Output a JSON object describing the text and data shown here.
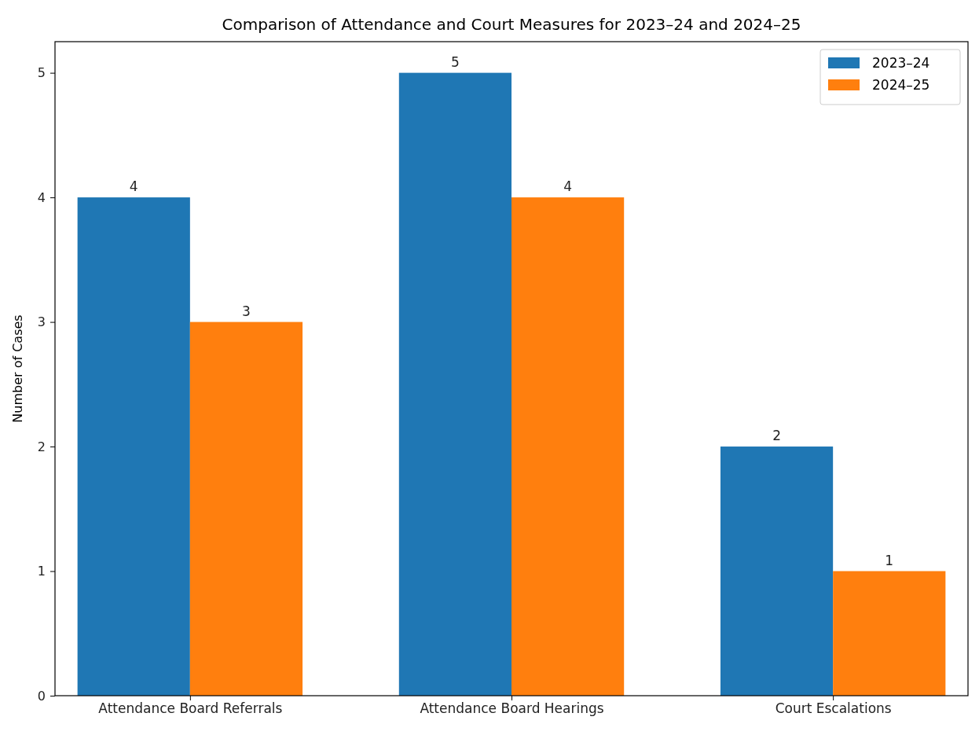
{
  "chart_data": {
    "type": "bar",
    "title": "Comparison of Attendance and Court Measures for 2023–24 and 2024–25",
    "ylabel": "Number of Cases",
    "categories": [
      "Attendance Board Referrals",
      "Attendance Board Hearings",
      "Court Escalations"
    ],
    "series": [
      {
        "name": "2023–24",
        "color": "#1f77b4",
        "values": [
          4,
          5,
          2
        ]
      },
      {
        "name": "2024–25",
        "color": "#ff7f0e",
        "values": [
          3,
          4,
          1
        ]
      }
    ],
    "ylim": [
      0,
      5.25
    ],
    "yticks": [
      0,
      1,
      2,
      3,
      4,
      5
    ],
    "data_labels": true,
    "legend": "top right",
    "grid": false
  }
}
